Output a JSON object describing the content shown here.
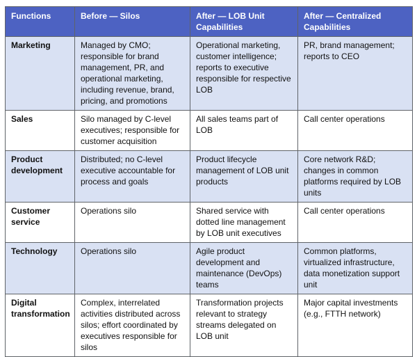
{
  "table": {
    "headers": [
      "Functions",
      "Before — Silos",
      "After — LOB Unit Capabilities",
      "After — Centralized Capabilities"
    ],
    "rows": [
      {
        "function": "Marketing",
        "before": "Managed by CMO; responsible for brand management, PR, and operational marketing, including revenue, brand, pricing, and promotions",
        "lob": "Operational marketing, customer intelligence; reports to executive responsible for respective LOB",
        "centralized": "PR, brand management; reports to CEO"
      },
      {
        "function": "Sales",
        "before": "Silo managed by C-level executives; responsible for customer acquisition",
        "lob": "All sales teams part of LOB",
        "centralized": "Call center operations"
      },
      {
        "function": "Product development",
        "before": "Distributed; no C-level executive accountable for process and goals",
        "lob": "Product lifecycle management of LOB unit products",
        "centralized": "Core network R&D; changes in common platforms required by LOB units"
      },
      {
        "function": "Customer service",
        "before": "Operations silo",
        "lob": "Shared service with dotted line management by LOB unit executives",
        "centralized": "Call center operations"
      },
      {
        "function": "Technology",
        "before": "Operations silo",
        "lob": "Agile product development and maintenance (DevOps) teams",
        "centralized": "Common platforms, virtualized infrastructure, data monetization support unit"
      },
      {
        "function": "Digital transformation",
        "before": "Complex, interrelated activities distributed across silos; effort coordinated by executives responsible for silos",
        "lob": "Transformation projects relevant to strategy streams delegated on LOB unit",
        "centralized": "Major capital investments (e.g., FTTH network)"
      }
    ]
  }
}
